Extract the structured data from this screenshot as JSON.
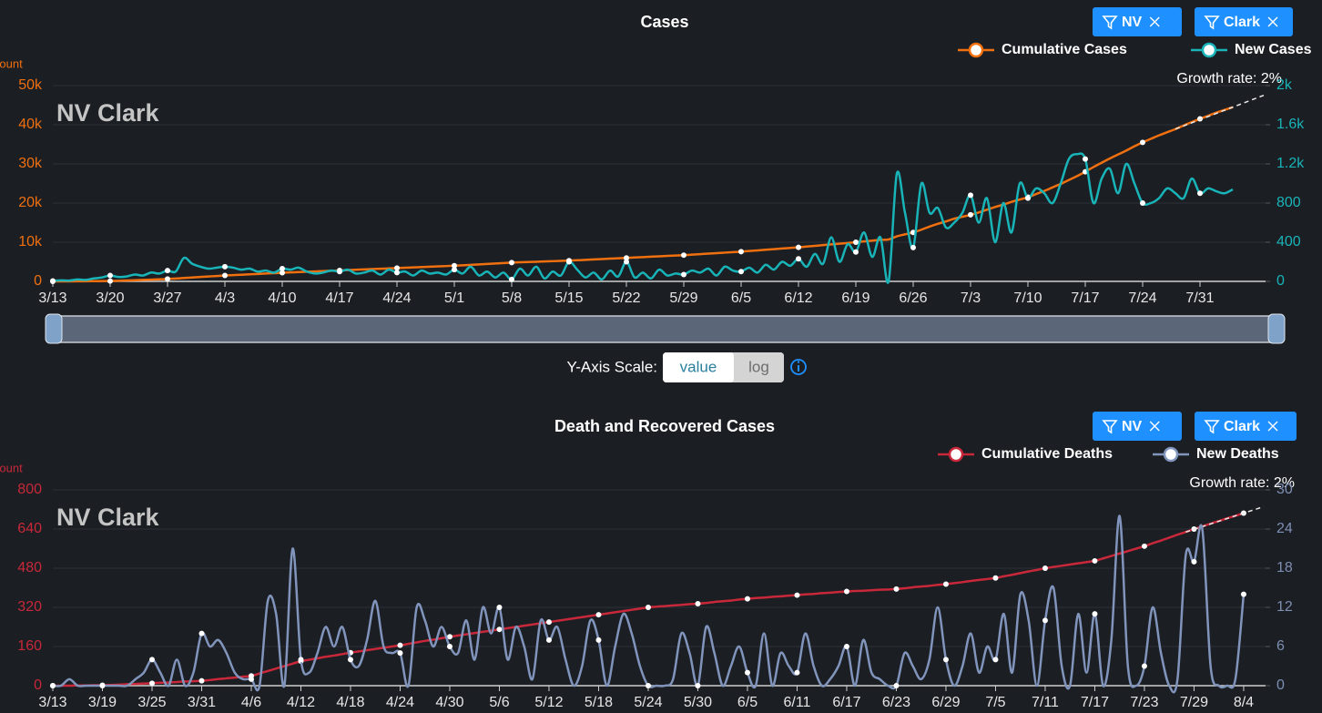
{
  "chart_data": [
    {
      "type": "line",
      "title": "Cases",
      "ylabel": "Count",
      "annotation": "NV Clark",
      "growth_label": "Growth rate: 2%",
      "filters": [
        "NV",
        "Clark"
      ],
      "log_scale": false,
      "grid": true,
      "categories": [
        "3/13",
        null,
        null,
        null,
        null,
        null,
        null,
        "3/20",
        null,
        null,
        null,
        null,
        null,
        null,
        "3/27",
        null,
        null,
        null,
        null,
        null,
        null,
        "4/3",
        null,
        null,
        null,
        null,
        null,
        null,
        "4/10",
        null,
        null,
        null,
        null,
        null,
        null,
        "4/17",
        null,
        null,
        null,
        null,
        null,
        null,
        "4/24",
        null,
        null,
        null,
        null,
        null,
        null,
        "5/1",
        null,
        null,
        null,
        null,
        null,
        null,
        "5/8",
        null,
        null,
        null,
        null,
        null,
        null,
        "5/15",
        null,
        null,
        null,
        null,
        null,
        null,
        "5/22",
        null,
        null,
        null,
        null,
        null,
        null,
        "5/29",
        null,
        null,
        null,
        null,
        null,
        null,
        "6/5",
        null,
        null,
        null,
        null,
        null,
        null,
        "6/12",
        null,
        null,
        null,
        null,
        null,
        null,
        "6/19",
        null,
        null,
        null,
        null,
        null,
        null,
        "6/26",
        null,
        null,
        null,
        null,
        null,
        null,
        "7/3",
        null,
        null,
        null,
        null,
        null,
        null,
        "7/10",
        null,
        null,
        null,
        null,
        null,
        null,
        "7/17",
        null,
        null,
        null,
        null,
        null,
        null,
        "7/24",
        null,
        null,
        null,
        null,
        null,
        null,
        "7/31",
        null,
        null,
        null,
        null
      ],
      "ylim": [
        0,
        50000
      ],
      "yticks": [
        0,
        {
          "value": 10000,
          "label": "10k"
        },
        {
          "value": 20000,
          "label": "20k"
        },
        {
          "value": 30000,
          "label": "30k"
        },
        {
          "value": 40000,
          "label": "40k"
        },
        {
          "value": 50000,
          "label": "50k"
        }
      ],
      "y2lim": [
        0,
        2000
      ],
      "y2ticks": [
        0,
        400,
        800,
        {
          "value": 1200,
          "label": "1.2k"
        },
        {
          "value": 1600,
          "label": "1.6k"
        },
        {
          "value": 2000,
          "label": "2k"
        }
      ],
      "series": [
        {
          "name": "Cumulative Cases",
          "color": "#f07010",
          "values": [
            0,
            5,
            10,
            20,
            35,
            55,
            75,
            100,
            160,
            230,
            300,
            370,
            450,
            520,
            600,
            730,
            860,
            990,
            1120,
            1250,
            1380,
            1500,
            1600,
            1700,
            1800,
            1900,
            2000,
            2100,
            2200,
            2290,
            2370,
            2460,
            2540,
            2630,
            2710,
            2800,
            2890,
            2970,
            3060,
            3140,
            3230,
            3310,
            3400,
            3490,
            3570,
            3660,
            3740,
            3830,
            3910,
            4000,
            4110,
            4230,
            4340,
            4460,
            4570,
            4690,
            4800,
            4870,
            4940,
            5010,
            5090,
            5160,
            5230,
            5300,
            5400,
            5500,
            5600,
            5700,
            5800,
            5900,
            6000,
            6100,
            6200,
            6300,
            6400,
            6500,
            6600,
            6700,
            6830,
            6960,
            7090,
            7210,
            7340,
            7470,
            7600,
            7760,
            7910,
            8070,
            8230,
            8390,
            8540,
            8700,
            8890,
            9070,
            9260,
            9440,
            9630,
            9810,
            10000,
            10200,
            10400,
            10600,
            10700,
            11500,
            12000,
            12500,
            13200,
            14000,
            14700,
            15300,
            16000,
            16500,
            17000,
            17600,
            18300,
            19000,
            19600,
            20300,
            20900,
            21500,
            22300,
            23100,
            24000,
            24900,
            25900,
            26900,
            28000,
            29200,
            30300,
            31400,
            32400,
            33400,
            34500,
            35500,
            36400,
            37300,
            38100,
            38900,
            39800,
            40700,
            41500,
            42300,
            43100,
            43800,
            44500
          ]
        },
        {
          "name": "New Cases",
          "color": "#18b4b8",
          "axis": "y2",
          "values": [
            5,
            10,
            8,
            20,
            15,
            30,
            40,
            60,
            45,
            50,
            70,
            60,
            90,
            80,
            110,
            100,
            240,
            180,
            150,
            130,
            140,
            150,
            140,
            120,
            130,
            100,
            110,
            90,
            130,
            120,
            140,
            100,
            80,
            90,
            110,
            100,
            120,
            80,
            90,
            110,
            70,
            120,
            90,
            100,
            60,
            110,
            80,
            90,
            70,
            120,
            80,
            150,
            60,
            100,
            40,
            90,
            20,
            130,
            60,
            150,
            30,
            100,
            60,
            200,
            120,
            40,
            90,
            20,
            110,
            50,
            200,
            40,
            90,
            30,
            120,
            60,
            80,
            70,
            110,
            90,
            130,
            60,
            150,
            110,
            100,
            140,
            90,
            170,
            120,
            200,
            160,
            230,
            150,
            280,
            180,
            450,
            200,
            380,
            300,
            500,
            250,
            450,
            0,
            1100,
            700,
            345,
            1000,
            700,
            750,
            550,
            600,
            700,
            880,
            600,
            850,
            400,
            800,
            500,
            1000,
            850,
            950,
            900,
            800,
            1000,
            1250,
            1300,
            1250,
            800,
            1050,
            1150,
            900,
            1200,
            1000,
            800,
            800,
            850,
            950,
            900,
            850,
            1050,
            900,
            950,
            920,
            900,
            940
          ]
        }
      ]
    },
    {
      "type": "line",
      "title": "Death and Recovered Cases",
      "ylabel": "Count",
      "annotation": "NV Clark",
      "growth_label": "Growth rate: 2%",
      "filters": [
        "NV",
        "Clark"
      ],
      "log_scale": false,
      "grid": true,
      "categories": [
        "3/13",
        null,
        null,
        null,
        null,
        null,
        "3/19",
        null,
        null,
        null,
        null,
        null,
        "3/25",
        null,
        null,
        null,
        null,
        null,
        "3/31",
        null,
        null,
        null,
        null,
        null,
        "4/6",
        null,
        null,
        null,
        null,
        null,
        "4/12",
        null,
        null,
        null,
        null,
        null,
        "4/18",
        null,
        null,
        null,
        null,
        null,
        "4/24",
        null,
        null,
        null,
        null,
        null,
        "4/30",
        null,
        null,
        null,
        null,
        null,
        "5/6",
        null,
        null,
        null,
        null,
        null,
        "5/12",
        null,
        null,
        null,
        null,
        null,
        "5/18",
        null,
        null,
        null,
        null,
        null,
        "5/24",
        null,
        null,
        null,
        null,
        null,
        "5/30",
        null,
        null,
        null,
        null,
        null,
        "6/5",
        null,
        null,
        null,
        null,
        null,
        "6/11",
        null,
        null,
        null,
        null,
        null,
        "6/17",
        null,
        null,
        null,
        null,
        null,
        "6/23",
        null,
        null,
        null,
        null,
        null,
        "6/29",
        null,
        null,
        null,
        null,
        null,
        "7/5",
        null,
        null,
        null,
        null,
        null,
        "7/11",
        null,
        null,
        null,
        null,
        null,
        "7/17",
        null,
        null,
        null,
        null,
        null,
        "7/23",
        null,
        null,
        null,
        null,
        null,
        "7/29",
        null,
        null,
        null,
        null,
        null,
        "8/4"
      ],
      "ylim": [
        0,
        800
      ],
      "yticks": [
        0,
        160,
        320,
        480,
        640,
        800
      ],
      "y2lim": [
        0,
        30
      ],
      "y2ticks": [
        0,
        6,
        12,
        18,
        24,
        30
      ],
      "series": [
        {
          "name": "Cumulative Deaths",
          "color": "#c8283a",
          "values": [
            0,
            0,
            0,
            1,
            1,
            2,
            2,
            3,
            4,
            6,
            7,
            9,
            10,
            12,
            13,
            15,
            17,
            18,
            20,
            23,
            27,
            30,
            33,
            37,
            40,
            50,
            60,
            70,
            80,
            90,
            100,
            106,
            112,
            118,
            123,
            129,
            135,
            140,
            145,
            150,
            155,
            160,
            165,
            171,
            177,
            183,
            188,
            194,
            200,
            205,
            210,
            215,
            220,
            225,
            230,
            235,
            240,
            245,
            250,
            255,
            260,
            265,
            270,
            275,
            280,
            285,
            290,
            295,
            300,
            305,
            310,
            315,
            320,
            323,
            325,
            328,
            330,
            333,
            335,
            338,
            342,
            345,
            348,
            352,
            355,
            358,
            360,
            363,
            365,
            368,
            370,
            373,
            375,
            378,
            380,
            383,
            385,
            387,
            388,
            390,
            392,
            393,
            395,
            398,
            402,
            405,
            408,
            412,
            415,
            419,
            423,
            428,
            432,
            436,
            440,
            447,
            453,
            460,
            467,
            473,
            480,
            485,
            490,
            495,
            500,
            505,
            510,
            520,
            530,
            540,
            550,
            560,
            570,
            582,
            593,
            605,
            617,
            628,
            640,
            651,
            662,
            673,
            684,
            694,
            705
          ]
        },
        {
          "name": "New Deaths",
          "color": "#8094bc",
          "axis": "y2",
          "values": [
            0,
            0,
            1,
            0,
            0,
            0,
            0,
            0,
            0,
            0,
            1,
            2,
            4,
            2,
            0,
            4,
            0,
            2,
            8,
            6,
            7,
            5,
            2,
            1,
            1,
            0,
            13,
            11,
            0,
            21,
            4,
            2,
            5,
            9,
            6,
            9,
            4,
            3,
            7,
            13,
            6,
            5,
            5,
            0,
            12,
            10,
            6,
            9,
            6,
            5,
            10,
            4,
            12,
            8,
            12,
            4,
            9,
            6,
            1,
            10,
            7,
            9,
            4,
            0,
            3,
            10,
            7,
            0,
            6,
            11,
            8,
            3,
            0,
            0,
            0,
            1,
            8,
            5,
            0,
            9,
            5,
            0,
            3,
            6,
            2,
            0,
            8,
            0,
            5,
            3,
            2,
            8,
            3,
            0,
            1,
            3,
            6,
            0,
            7,
            2,
            1,
            0,
            0,
            5,
            3,
            1,
            4,
            12,
            4,
            0,
            3,
            8,
            2,
            6,
            4,
            11,
            2,
            14,
            10,
            0,
            10,
            15,
            3,
            0,
            11,
            2,
            11,
            0,
            7,
            26,
            3,
            0,
            3,
            12,
            5,
            0,
            1,
            20,
            19,
            24,
            3,
            0,
            0,
            1,
            14
          ]
        }
      ]
    }
  ],
  "y_axis_scale": {
    "label": "Y-Axis Scale:",
    "options": [
      "value",
      "log"
    ],
    "selected": "value"
  }
}
